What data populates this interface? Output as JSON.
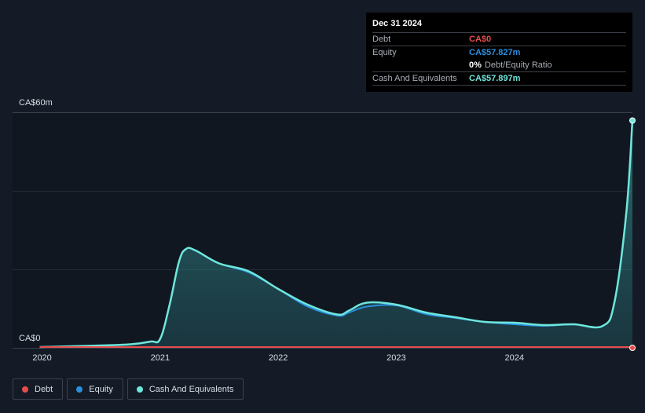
{
  "colors": {
    "debt": "#e64c4c",
    "equity": "#2a8fe0",
    "cash": "#6ee6dc",
    "background": "#151b26",
    "plot_background": "#111720"
  },
  "tooltip": {
    "date": "Dec 31 2024",
    "rows": [
      {
        "label": "Debt",
        "value": "CA$0",
        "color": "#e64c4c"
      },
      {
        "label": "Equity",
        "value": "CA$57.827m",
        "color": "#2a8fe0"
      },
      {
        "label": "",
        "value": "0%",
        "suffix": "Debt/Equity Ratio",
        "color": "#ffffff"
      },
      {
        "label": "Cash And Equivalents",
        "value": "CA$57.897m",
        "color": "#6ee6dc"
      }
    ]
  },
  "legend": [
    {
      "label": "Debt",
      "color": "#e64c4c"
    },
    {
      "label": "Equity",
      "color": "#2a8fe0"
    },
    {
      "label": "Cash And Equivalents",
      "color": "#6ee6dc"
    }
  ],
  "chart_data": {
    "type": "area",
    "y_top_label": "CA$60m",
    "y_bottom_label": "CA$0",
    "ylim": [
      0,
      60
    ],
    "xlim": [
      2019.75,
      2025.0
    ],
    "x_ticks": [
      "2020",
      "2021",
      "2022",
      "2023",
      "2024"
    ],
    "x_tick_values": [
      2020,
      2021,
      2022,
      2023,
      2024
    ],
    "grid": true,
    "legend_position": "bottom-left",
    "series": [
      {
        "name": "Cash And Equivalents",
        "x": [
          2019.98,
          2020.25,
          2020.5,
          2020.75,
          2020.92,
          2021.0,
          2021.08,
          2021.16,
          2021.22,
          2021.3,
          2021.5,
          2021.75,
          2022.0,
          2022.25,
          2022.5,
          2022.6,
          2022.75,
          2023.0,
          2023.25,
          2023.5,
          2023.75,
          2024.0,
          2024.25,
          2024.5,
          2024.75,
          2024.85,
          2024.95,
          2025.0
        ],
        "values": [
          0.2,
          0.4,
          0.6,
          0.9,
          1.6,
          2.3,
          11,
          22,
          25.2,
          24.8,
          21.5,
          19.5,
          15,
          11,
          8.5,
          9.5,
          11.5,
          11,
          9,
          7.8,
          6.6,
          6.4,
          5.8,
          6.0,
          5.6,
          12,
          35,
          57.9
        ]
      },
      {
        "name": "Equity",
        "x": [
          2019.98,
          2020.25,
          2020.5,
          2020.75,
          2020.92,
          2021.0,
          2021.08,
          2021.16,
          2021.22,
          2021.3,
          2021.5,
          2021.75,
          2022.0,
          2022.25,
          2022.5,
          2022.6,
          2022.75,
          2023.0,
          2023.25,
          2023.5,
          2023.75,
          2024.0,
          2024.25,
          2024.5,
          2024.75,
          2024.85,
          2024.95,
          2025.0
        ],
        "values": [
          0.2,
          0.4,
          0.6,
          0.9,
          1.6,
          2.3,
          11,
          22,
          25.2,
          24.8,
          21.5,
          19.2,
          15,
          10.5,
          8.2,
          9.0,
          10.5,
          10.8,
          8.6,
          7.6,
          6.6,
          6.0,
          5.6,
          6.0,
          5.6,
          12,
          35,
          57.8
        ]
      },
      {
        "name": "Debt",
        "x": [
          2019.98,
          2025.0
        ],
        "values": [
          0,
          0
        ]
      }
    ]
  }
}
